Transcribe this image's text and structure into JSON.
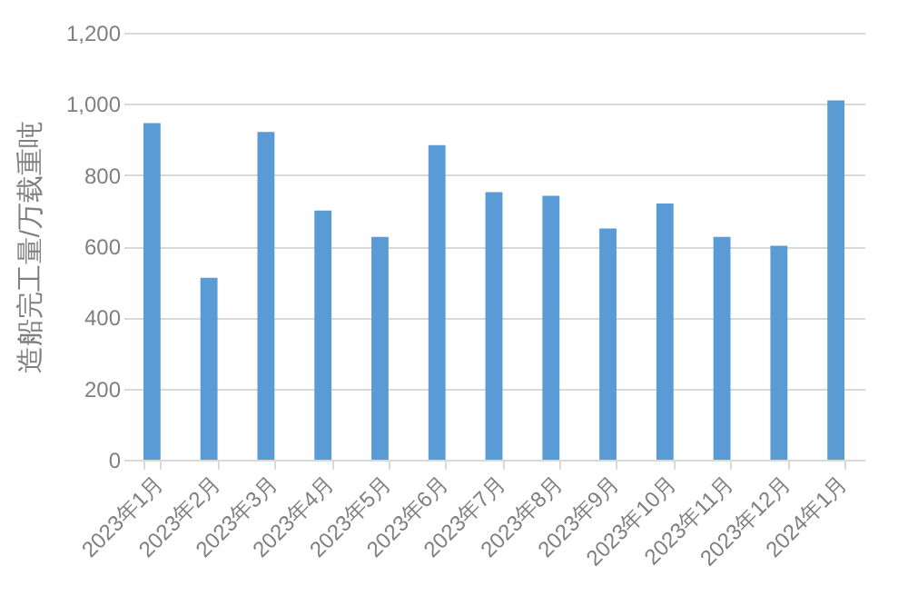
{
  "chart_data": {
    "type": "bar",
    "ylabel": "造船完工量/万载重吨",
    "categories": [
      "2023年1月",
      "2023年2月",
      "2023年3月",
      "2023年4月",
      "2023年5月",
      "2023年6月",
      "2023年7月",
      "2023年8月",
      "2023年9月",
      "2023年10月",
      "2023年11月",
      "2023年12月",
      "2024年1月"
    ],
    "values": [
      946,
      511,
      921,
      700,
      626,
      884,
      752,
      742,
      650,
      720,
      626,
      601,
      1010
    ],
    "color": "#5b9bd5",
    "ylim": [
      0,
      1200
    ],
    "yticks": [
      0,
      200,
      400,
      600,
      800,
      {
        "value": 1000,
        "label": "1,000"
      },
      {
        "value": 1200,
        "label": "1,200"
      }
    ],
    "grid": "y"
  }
}
